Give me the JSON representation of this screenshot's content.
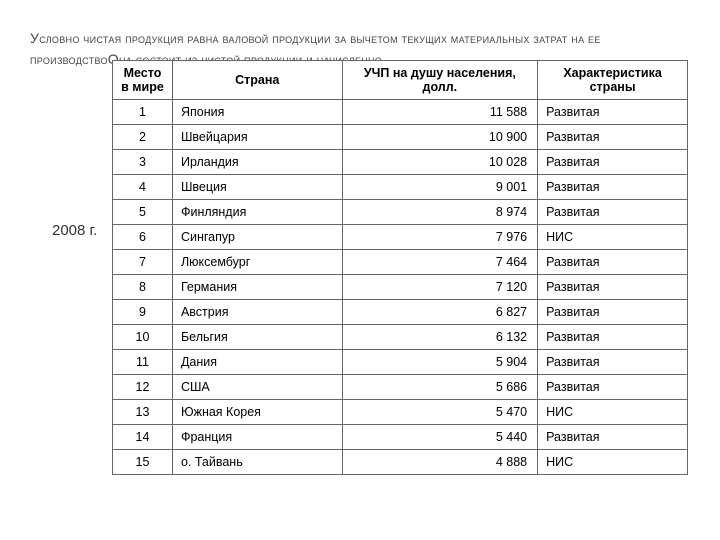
{
  "heading_html": "<span class=\"firstcap\">У</span>словно чистая продукция равна валовой продукции за вычетом текущих материальных затрат на ее производство<span class=\"firstcap\">О</span>на состоит из чистой продукции и начисленно",
  "year_label": "2008 г.",
  "table": {
    "columns": [
      {
        "label_lines": [
          "Место",
          "в мире"
        ],
        "class": "col-rank"
      },
      {
        "label_lines": [
          "Страна"
        ],
        "class": "col-country"
      },
      {
        "label_lines": [
          "УЧП на душу населения,",
          "долл."
        ],
        "class": "col-value"
      },
      {
        "label_lines": [
          "Характеристика",
          "страны"
        ],
        "class": "col-char"
      }
    ],
    "rows": [
      {
        "rank": "1",
        "country": "Япония",
        "value": "11 588",
        "char": "Развитая"
      },
      {
        "rank": "2",
        "country": "Швейцария",
        "value": "10 900",
        "char": "Развитая"
      },
      {
        "rank": "3",
        "country": "Ирландия",
        "value": "10 028",
        "char": "Развитая"
      },
      {
        "rank": "4",
        "country": "Швеция",
        "value": "9 001",
        "char": "Развитая"
      },
      {
        "rank": "5",
        "country": "Финляндия",
        "value": "8 974",
        "char": "Развитая"
      },
      {
        "rank": "6",
        "country": "Сингапур",
        "value": "7 976",
        "char": "НИС"
      },
      {
        "rank": "7",
        "country": "Люксембург",
        "value": "7 464",
        "char": "Развитая"
      },
      {
        "rank": "8",
        "country": "Германия",
        "value": "7 120",
        "char": "Развитая"
      },
      {
        "rank": "9",
        "country": "Австрия",
        "value": "6 827",
        "char": "Развитая"
      },
      {
        "rank": "10",
        "country": "Бельгия",
        "value": "6 132",
        "char": "Развитая"
      },
      {
        "rank": "11",
        "country": "Дания",
        "value": "5 904",
        "char": "Развитая"
      },
      {
        "rank": "12",
        "country": "США",
        "value": "5 686",
        "char": "Развитая"
      },
      {
        "rank": "13",
        "country": "Южная Корея",
        "value": "5 470",
        "char": "НИС"
      },
      {
        "rank": "14",
        "country": "Франция",
        "value": "5 440",
        "char": "Развитая"
      },
      {
        "rank": "15",
        "country": "о. Тайвань",
        "value": "4 888",
        "char": "НИС"
      }
    ]
  }
}
